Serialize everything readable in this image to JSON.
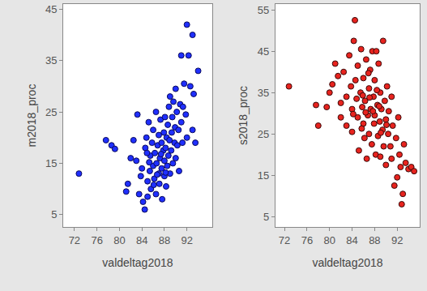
{
  "chart_data": [
    {
      "type": "scatter",
      "x_label": "valdeltag2018",
      "y_label": "m2018_proc",
      "color": "#1f2fff",
      "marker": "circle",
      "xlim": [
        70,
        96.5
      ],
      "ylim": [
        2.6,
        46
      ],
      "xticks": [
        72,
        76,
        80,
        84,
        88,
        92
      ],
      "yticks": [
        5,
        15,
        25,
        35,
        45
      ],
      "x": [
        72.8,
        77.6,
        78.6,
        79.2,
        81.2,
        81.5,
        82,
        82.5,
        83,
        83.2,
        83.5,
        83.8,
        84,
        84.2,
        84.5,
        84.6,
        84.8,
        85,
        85,
        85.2,
        85.4,
        85.5,
        85.6,
        85.8,
        86,
        86,
        86.2,
        86.3,
        86.5,
        86.5,
        86.6,
        86.8,
        87,
        87,
        87.1,
        87.2,
        87.3,
        87.5,
        87.5,
        87.6,
        87.8,
        87.9,
        88,
        88,
        88.1,
        88.2,
        88.3,
        88.4,
        88.5,
        88.6,
        88.7,
        88.8,
        88.9,
        89,
        89,
        89.2,
        89.3,
        89.4,
        89.5,
        89.6,
        89.8,
        89.9,
        90,
        90,
        90.2,
        90.3,
        90.5,
        90.6,
        90.8,
        91,
        91,
        91.2,
        91.3,
        91.5,
        91.8,
        92,
        92,
        92.3,
        92.6,
        93,
        93,
        93.2,
        93.5,
        94,
        86.1,
        85.3,
        87.4,
        86.7,
        88.2,
        84.9
      ],
      "values": [
        13,
        19.5,
        18.5,
        17.8,
        9.5,
        11,
        16,
        19.5,
        15.5,
        24.5,
        9,
        12.5,
        14,
        7.5,
        6,
        18,
        20,
        8.5,
        11.5,
        23,
        13.5,
        16.5,
        10,
        19,
        14.5,
        21.5,
        12,
        17,
        9,
        25,
        15,
        18.5,
        13,
        20.5,
        11,
        16,
        23.5,
        14,
        19,
        8,
        17.5,
        21,
        12.5,
        15.5,
        24,
        18,
        10.5,
        20,
        14.5,
        22.5,
        16.5,
        26,
        19.5,
        13,
        28,
        17.5,
        21,
        24,
        15,
        27,
        19,
        22,
        16,
        29.5,
        25,
        18.5,
        21.5,
        13.5,
        26.5,
        36,
        23,
        19,
        26,
        30.5,
        24.5,
        42,
        20,
        36,
        30,
        40,
        21.5,
        28.5,
        19,
        33,
        10.8,
        15.2,
        16.8,
        12.8,
        13.2,
        17
      ]
    },
    {
      "type": "scatter",
      "x_label": "valdeltag2018",
      "y_label": "s2018_proc",
      "color": "#e8231e",
      "marker": "circle",
      "xlim": [
        70.4,
        96
      ],
      "ylim": [
        2.5,
        56.4
      ],
      "xticks": [
        72,
        76,
        80,
        84,
        88,
        92
      ],
      "yticks": [
        5,
        15,
        25,
        35,
        45,
        55
      ],
      "x": [
        72.8,
        77.6,
        78,
        79.5,
        80,
        80.5,
        81,
        81.5,
        82,
        82,
        82.5,
        83,
        83,
        83.5,
        83.8,
        84,
        84,
        84.3,
        84.5,
        84.6,
        84.8,
        85,
        85,
        85.2,
        85.5,
        85.6,
        85.8,
        86,
        86,
        86.2,
        86.3,
        86.5,
        86.6,
        86.8,
        87,
        87,
        87.2,
        87.3,
        87.5,
        87.6,
        87.8,
        87.9,
        88,
        88,
        88.2,
        88.3,
        88.5,
        88.6,
        88.7,
        88.9,
        89,
        89,
        89.2,
        89.4,
        89.5,
        89.6,
        89.8,
        90,
        90,
        90.2,
        90.4,
        90.5,
        90.8,
        91,
        91,
        91.2,
        91.5,
        91.8,
        92,
        92.2,
        92.4,
        92.6,
        92.8,
        93,
        93.2,
        93.5,
        94,
        94.5,
        95,
        86.4,
        85.7,
        87.1,
        88.4,
        86.9,
        89.1,
        84.2,
        90.1,
        87.7,
        88.8,
        85.9
      ],
      "values": [
        36.5,
        32,
        27,
        31.5,
        35,
        37,
        42,
        39,
        32.5,
        29,
        40,
        34,
        27,
        44,
        36.5,
        31,
        25.5,
        47.5,
        52.5,
        38,
        33.5,
        29,
        41.5,
        21,
        35,
        45.5,
        31.5,
        27.5,
        38.5,
        24,
        33,
        43,
        19,
        29.5,
        36,
        25,
        40.5,
        31,
        22.5,
        45,
        34,
        27.5,
        38,
        29.5,
        20,
        45,
        32,
        24.5,
        42,
        28,
        35,
        19.5,
        31,
        26,
        47.5,
        22,
        33,
        28.5,
        17.5,
        36.5,
        25,
        30.5,
        22,
        34,
        19,
        27,
        12.5,
        24,
        14.5,
        29,
        20,
        17,
        8,
        10.5,
        22.5,
        18,
        16.5,
        17,
        16,
        30.2,
        26.3,
        33.8,
        35.6,
        39.7,
        25.3,
        29.8,
        27.2,
        30.5,
        31.7,
        34.3
      ]
    }
  ]
}
